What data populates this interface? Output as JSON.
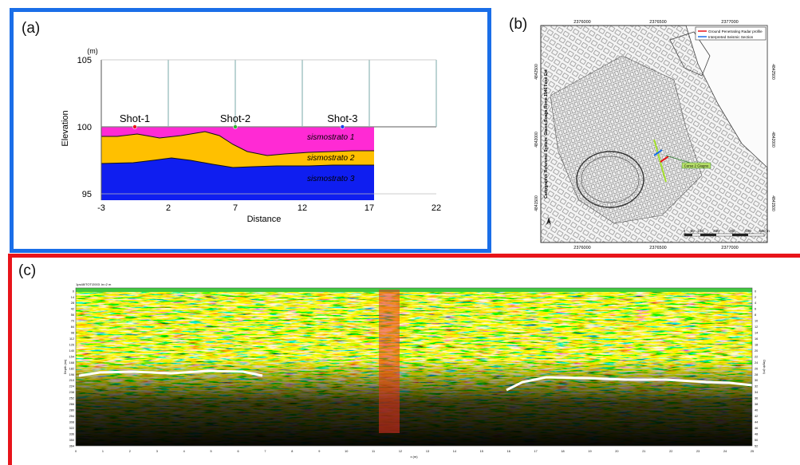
{
  "panel_a": {
    "label": "(a)",
    "y_unit": "(m)",
    "ylabel": "Elevation",
    "xlabel": "Distance",
    "y_ticks": [
      "105",
      "100",
      "95"
    ],
    "x_ticks": [
      "-3",
      "2",
      "7",
      "12",
      "17",
      "22"
    ],
    "shots": [
      {
        "label": "Shot-1",
        "x": -0.5,
        "color": "#e8141a"
      },
      {
        "label": "Shot-2",
        "x": 7.0,
        "color": "#2db52d"
      },
      {
        "label": "Shot-3",
        "x": 15.0,
        "color": "#1a3ee8"
      }
    ],
    "layers": [
      "sismostrato 1",
      "sismostrato 2",
      "sismostrato 3"
    ],
    "colors": {
      "layer1": "#ff2ad4",
      "layer2": "#ffc000",
      "layer3": "#0f1ef0"
    }
  },
  "panel_b": {
    "label": "(b)",
    "top_coords": [
      "2376000",
      "2376500",
      "2377000"
    ],
    "bottom_coords": [
      "2376000",
      "2376500",
      "2377000"
    ],
    "left_coords": [
      "4842500",
      "4842000",
      "4841500"
    ],
    "right_coords": [
      "4842500",
      "4842000",
      "4841500"
    ],
    "vertical_title": "Cartographic Reference System: Gauss-Boaga Rome 1940 Fuso Est",
    "legend": [
      {
        "label": "Ground Penetrating Radar profile",
        "color": "#e8141a"
      },
      {
        "label": "Interpreted Seismic Section",
        "color": "#1a6ee8"
      }
    ],
    "callout": "Corso 2 Giugno",
    "scale_labels": [
      "0",
      "50",
      "100",
      "200",
      "300",
      "400",
      "500 m"
    ]
  },
  "panel_c": {
    "label": "(c)",
    "header_text": "1ps48/TOT/2003 .ln=2 m",
    "x_axis_label": "x (m)",
    "left_axis_label": "Depth (ns)",
    "right_axis_label": "Depth (m)",
    "left_ticks": [
      "0",
      "14",
      "28",
      "42",
      "56",
      "70",
      "84",
      "98",
      "112",
      "126",
      "140",
      "154",
      "168",
      "182",
      "196",
      "210",
      "224",
      "238",
      "252",
      "266",
      "280",
      "294",
      "308",
      "322",
      "336",
      "350",
      "364"
    ],
    "right_ticks": [
      "0",
      "2",
      "4",
      "6",
      "8",
      "10",
      "12",
      "14",
      "16",
      "18",
      "20",
      "22",
      "24",
      "26",
      "28",
      "30",
      "32",
      "34",
      "36",
      "38",
      "40",
      "42",
      "44",
      "46",
      "48",
      "50",
      "52"
    ],
    "x_ticks": [
      "0",
      "1",
      "2",
      "3",
      "4",
      "5",
      "6",
      "7",
      "8",
      "9",
      "10",
      "11",
      "12",
      "13",
      "14",
      "15",
      "16",
      "17",
      "18",
      "19",
      "20",
      "21",
      "22",
      "23",
      "24",
      "25"
    ]
  }
}
